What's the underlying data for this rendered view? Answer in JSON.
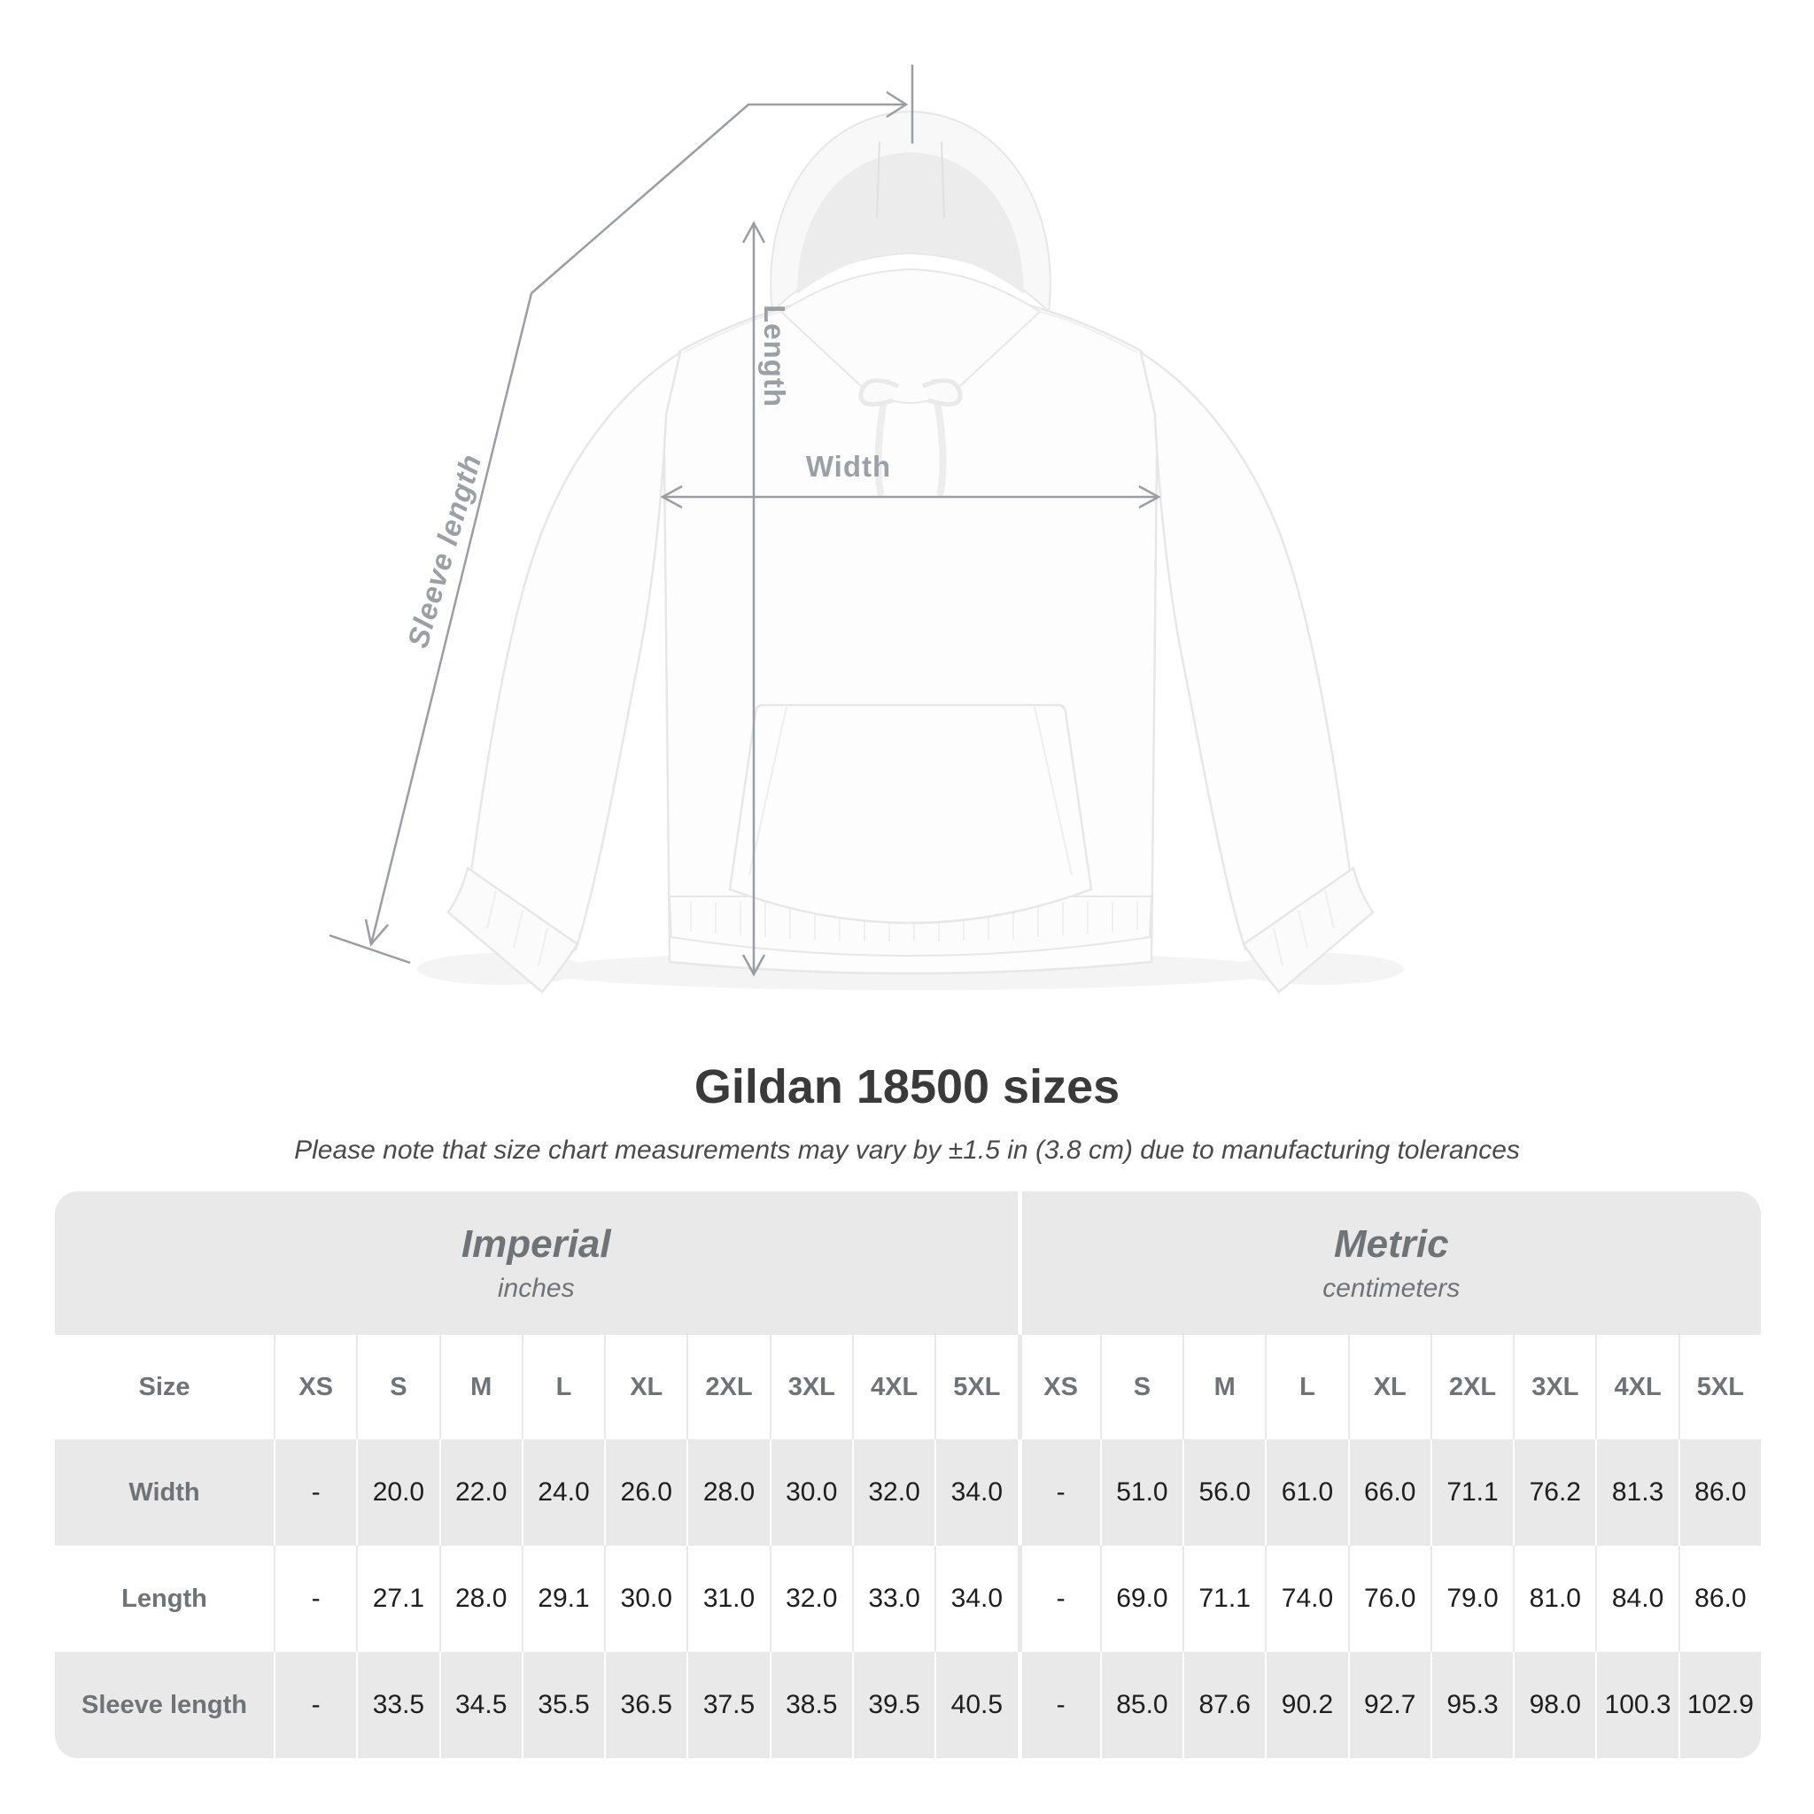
{
  "title": "Gildan 18500 sizes",
  "subtitle": "Please note that size chart measurements may vary by ±1.5 in (3.8 cm) due to manufacturing tolerances",
  "diagram": {
    "width_label": "Width",
    "length_label": "Length",
    "sleeve_label": "Sleeve length"
  },
  "chart_data": {
    "type": "table",
    "title": "Gildan 18500 sizes",
    "size_header": "Size",
    "unit_groups": [
      {
        "name": "Imperial",
        "unit": "inches"
      },
      {
        "name": "Metric",
        "unit": "centimeters"
      }
    ],
    "sizes": [
      "XS",
      "S",
      "M",
      "L",
      "XL",
      "2XL",
      "3XL",
      "4XL",
      "5XL"
    ],
    "rows": [
      {
        "label": "Width",
        "imperial": [
          "-",
          "20.0",
          "22.0",
          "24.0",
          "26.0",
          "28.0",
          "30.0",
          "32.0",
          "34.0"
        ],
        "metric": [
          "-",
          "51.0",
          "56.0",
          "61.0",
          "66.0",
          "71.1",
          "76.2",
          "81.3",
          "86.0"
        ]
      },
      {
        "label": "Length",
        "imperial": [
          "-",
          "27.1",
          "28.0",
          "29.1",
          "30.0",
          "31.0",
          "32.0",
          "33.0",
          "34.0"
        ],
        "metric": [
          "-",
          "69.0",
          "71.1",
          "74.0",
          "76.0",
          "79.0",
          "81.0",
          "84.0",
          "86.0"
        ]
      },
      {
        "label": "Sleeve length",
        "imperial": [
          "-",
          "33.5",
          "34.5",
          "35.5",
          "36.5",
          "37.5",
          "38.5",
          "39.5",
          "40.5"
        ],
        "metric": [
          "-",
          "85.0",
          "87.6",
          "90.2",
          "92.7",
          "95.3",
          "98.0",
          "100.3",
          "102.9"
        ]
      }
    ]
  },
  "colors": {
    "annotation_line": "#9a9ea3",
    "annotation_label": "#9aa0a5",
    "table_band": "#e9e9e9",
    "header_text": "#6e7378",
    "value_text": "#1e1e1e",
    "title_text": "#3a3a3a"
  }
}
